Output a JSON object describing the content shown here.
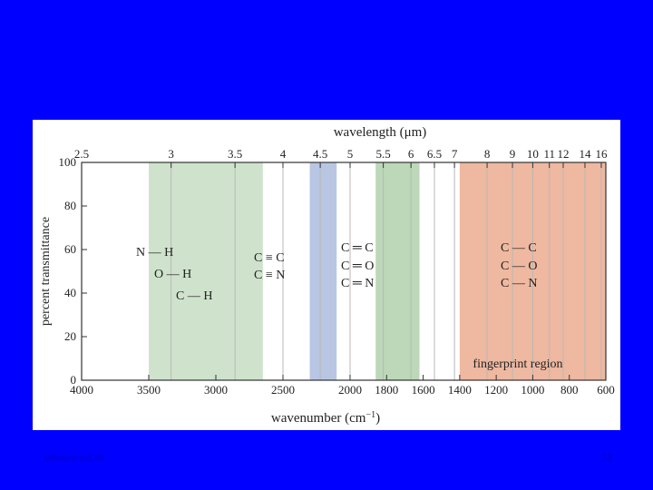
{
  "slide": {
    "footer_left": "Mohammed Ali",
    "page_number": "24",
    "background": "#0000ff"
  },
  "chart_data": {
    "type": "diagram",
    "top_axis_label": "wavelength (μm)",
    "top_ticks": [
      "2.5",
      "3",
      "3.5",
      "4",
      "4.5",
      "5",
      "5.5",
      "6",
      "6.5",
      "7",
      "8",
      "9",
      "10",
      "11",
      "12",
      "14",
      "16"
    ],
    "top_tick_values_um": [
      2.5,
      3,
      3.5,
      4,
      4.5,
      5,
      5.5,
      6,
      6.5,
      7,
      8,
      9,
      10,
      11,
      12,
      14,
      16
    ],
    "bottom_axis_label": "wavenumber (cm",
    "bottom_axis_label_sup": "−1",
    "bottom_axis_label_end": ")",
    "bottom_ticks": [
      "4000",
      "3500",
      "3000",
      "2500",
      "2000",
      "1800",
      "1600",
      "1400",
      "1200",
      "1000",
      "800",
      "600"
    ],
    "bottom_tick_values_cm": [
      4000,
      3500,
      3000,
      2500,
      2000,
      1800,
      1600,
      1400,
      1200,
      1000,
      800,
      600
    ],
    "y_axis_label": "percent transmittance",
    "y_ticks": [
      "0",
      "20",
      "40",
      "60",
      "80",
      "100"
    ],
    "y_tick_values": [
      0,
      20,
      40,
      60,
      80,
      100
    ],
    "ylim": [
      0,
      100
    ],
    "regions": [
      {
        "from_cm": 3500,
        "to_cm": 2650,
        "color": "#cfe3cc",
        "labels": [
          "N — H",
          "O — H",
          "C — H"
        ]
      },
      {
        "from_cm": 2300,
        "to_cm": 2100,
        "color": "#b8c6e3",
        "labels": [
          "C ≡ C",
          "C ≡ N"
        ]
      },
      {
        "from_cm": 1860,
        "to_cm": 1620,
        "color": "#bcd8b8",
        "labels": [
          "C ═ C",
          "C ═ O",
          "C ═ N"
        ]
      },
      {
        "from_cm": 1400,
        "to_cm": 600,
        "color": "#efb8a0",
        "labels": [
          "C — C",
          "C — O",
          "C — N"
        ],
        "caption": "fingerprint region"
      }
    ]
  }
}
